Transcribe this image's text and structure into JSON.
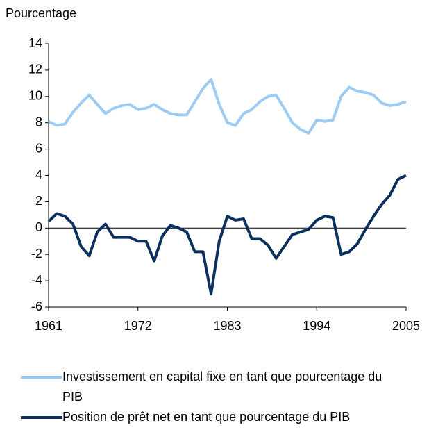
{
  "chart_data": {
    "type": "line",
    "y_label": "Pourcentage",
    "x": [
      1961,
      1962,
      1963,
      1964,
      1965,
      1966,
      1967,
      1968,
      1969,
      1970,
      1971,
      1972,
      1973,
      1974,
      1975,
      1976,
      1977,
      1978,
      1979,
      1980,
      1981,
      1982,
      1983,
      1984,
      1985,
      1986,
      1987,
      1988,
      1989,
      1990,
      1991,
      1992,
      1993,
      1994,
      1995,
      1996,
      1997,
      1998,
      1999,
      2000,
      2001,
      2002,
      2003,
      2004,
      2005
    ],
    "series": [
      {
        "name": "Investissement en capital fixe en tant que pourcentage du PIB",
        "color": "#9ccbf4",
        "values": [
          8.1,
          7.8,
          7.9,
          8.8,
          9.5,
          10.1,
          9.4,
          8.7,
          9.1,
          9.3,
          9.4,
          9.0,
          9.1,
          9.4,
          9.0,
          8.7,
          8.6,
          8.6,
          9.6,
          10.6,
          11.3,
          9.4,
          8.0,
          7.8,
          8.7,
          9.0,
          9.6,
          10.0,
          10.1,
          9.1,
          8.0,
          7.5,
          7.2,
          8.2,
          8.1,
          8.2,
          10.0,
          10.7,
          10.4,
          10.3,
          10.1,
          9.5,
          9.3,
          9.4,
          9.6
        ]
      },
      {
        "name": "Position de prêt net en tant que pourcentage du PIB",
        "color": "#0b2f5e",
        "values": [
          0.5,
          1.1,
          0.9,
          0.3,
          -1.4,
          -2.1,
          -0.3,
          0.3,
          -0.7,
          -0.7,
          -0.7,
          -1.0,
          -1.0,
          -2.5,
          -0.6,
          0.2,
          0.0,
          -0.3,
          -1.8,
          -1.8,
          -5.0,
          -1.0,
          0.9,
          0.6,
          0.7,
          -0.8,
          -0.8,
          -1.3,
          -2.3,
          -1.4,
          -0.5,
          -0.3,
          -0.1,
          0.6,
          0.9,
          0.8,
          -2.0,
          -1.8,
          -1.2,
          -0.1,
          0.9,
          1.8,
          2.5,
          3.7,
          4.0
        ]
      }
    ],
    "xlim": [
      1961,
      2005
    ],
    "xticks": [
      1961,
      1972,
      1983,
      1994,
      2005
    ],
    "ylim": [
      -6,
      14
    ],
    "yticks": [
      -6,
      -4,
      -2,
      0,
      2,
      4,
      6,
      8,
      10,
      12,
      14
    ]
  }
}
